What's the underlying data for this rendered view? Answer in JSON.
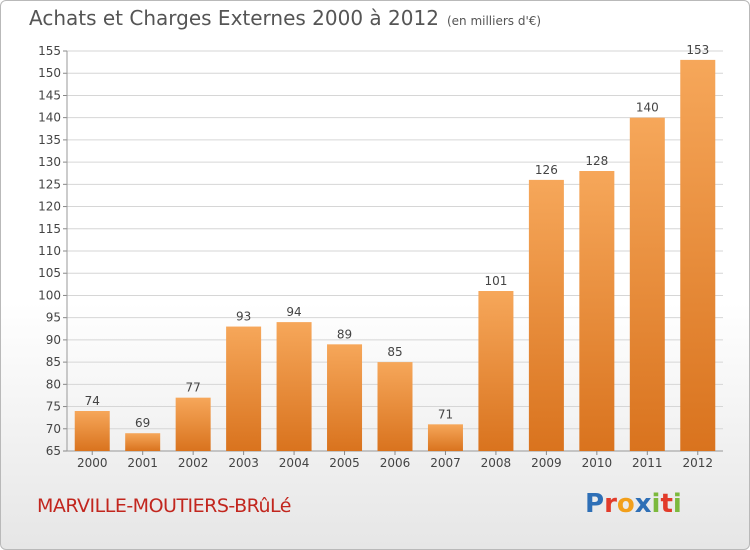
{
  "title": "Achats et Charges Externes 2000 à 2012",
  "unit": "(en milliers d'€)",
  "commune": "MARVILLE-MOUTIERS-BRûLé",
  "logo": {
    "letters": [
      "P",
      "r",
      "o",
      "x",
      "i",
      "t",
      "i"
    ],
    "colors": [
      "#2e6fb6",
      "#e23b2a",
      "#f29f1a",
      "#2e6fb6",
      "#7cb93c",
      "#e23b2a",
      "#7cb93c"
    ]
  },
  "colors": {
    "bar": "#f0923b",
    "bar_light": "#f6a75a",
    "bar_dark": "#d9731e",
    "grid": "#d6d6d6",
    "title": "#555555",
    "commune": "#c2261e"
  },
  "chart_data": {
    "type": "bar",
    "categories": [
      "2000",
      "2001",
      "2002",
      "2003",
      "2004",
      "2005",
      "2006",
      "2007",
      "2008",
      "2009",
      "2010",
      "2011",
      "2012"
    ],
    "values": [
      74,
      69,
      77,
      93,
      94,
      89,
      85,
      71,
      101,
      126,
      128,
      140,
      153
    ],
    "ylim": [
      65,
      155
    ],
    "yticks": [
      65,
      70,
      75,
      80,
      85,
      90,
      95,
      100,
      105,
      110,
      115,
      120,
      125,
      130,
      135,
      140,
      145,
      150,
      155
    ],
    "grid": true,
    "show_data_labels": true
  }
}
